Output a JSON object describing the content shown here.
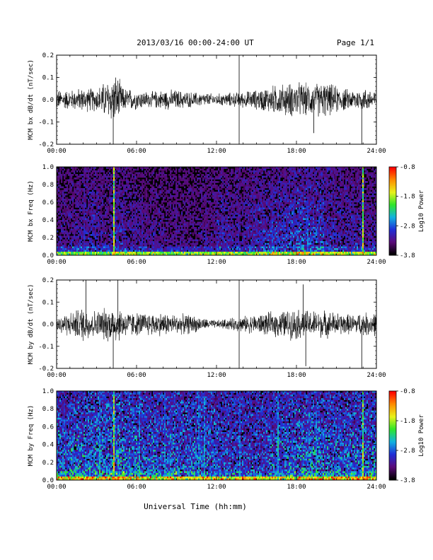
{
  "header": {
    "title": "2013/03/16  00:00-24:00 UT",
    "page": "Page 1/1"
  },
  "xaxis": {
    "ticks": [
      "00:00",
      "06:00",
      "12:00",
      "18:00",
      "24:00"
    ],
    "label": "Universal Time (hh:mm)"
  },
  "colorbar": {
    "ticks": [
      "-0.8",
      "-1.8",
      "-2.8",
      "-3.8"
    ],
    "label": "Log10 Power",
    "range": [
      -3.8,
      -0.8
    ],
    "colors": [
      "#000000",
      "#5b0a7a",
      "#1f2ed8",
      "#12b3e0",
      "#2fe62a",
      "#e8f21a",
      "#ff8c00",
      "#ff0000"
    ]
  },
  "chart_data": [
    {
      "type": "line",
      "panel": "bx-dbdt",
      "ylabel": "MCM bx dB/dt (nT/sec)",
      "ylim": [
        -0.2,
        0.2
      ],
      "yticks": [
        "0.2",
        "0.1",
        "0.0",
        "-0.1",
        "-0.2"
      ],
      "xlim_hours": [
        0,
        24
      ],
      "envelope": {
        "x": [
          0,
          1,
          2,
          3,
          4,
          4.5,
          5,
          6,
          7,
          8,
          9,
          10,
          11,
          12,
          13,
          14,
          15,
          16,
          17,
          18,
          19,
          20,
          21,
          22,
          23,
          24
        ],
        "amplitude": [
          0.05,
          0.05,
          0.06,
          0.06,
          0.11,
          0.13,
          0.06,
          0.05,
          0.04,
          0.05,
          0.05,
          0.04,
          0.035,
          0.03,
          0.035,
          0.04,
          0.05,
          0.07,
          0.08,
          0.09,
          0.08,
          0.09,
          0.07,
          0.05,
          0.06,
          0.05
        ]
      },
      "spikes": [
        {
          "x": 4.25,
          "y": -0.2
        },
        {
          "x": 13.7,
          "y": 0.2
        },
        {
          "x": 13.7,
          "y": -0.2
        },
        {
          "x": 22.9,
          "y": -0.2
        },
        {
          "x": 19.3,
          "y": -0.15
        }
      ]
    },
    {
      "type": "heatmap",
      "panel": "bx-freq",
      "ylabel": "MCM bx Freq (Hz)",
      "ylim": [
        0.0,
        1.0
      ],
      "yticks": [
        "1.0",
        "0.8",
        "0.6",
        "0.4",
        "0.2",
        "0.0"
      ],
      "xlim_hours": [
        0,
        24
      ],
      "background_level": 0.15,
      "activity_by_hour": [
        0.25,
        0.3,
        0.35,
        0.3,
        0.35,
        0.3,
        0.25,
        0.25,
        0.2,
        0.2,
        0.2,
        0.25,
        0.35,
        0.3,
        0.35,
        0.4,
        0.45,
        0.5,
        0.55,
        0.5,
        0.4,
        0.35,
        0.35,
        0.3
      ],
      "streaks": [
        {
          "x": 4.25,
          "level": 0.95
        },
        {
          "x": 22.9,
          "level": 0.9
        },
        {
          "x": 2.0,
          "level": 0.35
        },
        {
          "x": 6.4,
          "level": 0.3
        },
        {
          "x": 8.9,
          "level": 0.3
        },
        {
          "x": 11.1,
          "level": 0.3
        },
        {
          "x": 13.6,
          "level": 0.3
        },
        {
          "x": 16.1,
          "level": 0.35
        },
        {
          "x": 18.8,
          "level": 0.4
        }
      ]
    },
    {
      "type": "line",
      "panel": "by-dbdt",
      "ylabel": "MCM by dB/dt (nT/sec)",
      "ylim": [
        -0.2,
        0.2
      ],
      "yticks": [
        "0.2",
        "0.1",
        "0.0",
        "-0.1",
        "-0.2"
      ],
      "xlim_hours": [
        0,
        24
      ],
      "envelope": {
        "x": [
          0,
          1,
          2,
          3,
          4,
          4.5,
          5,
          6,
          7,
          8,
          9,
          10,
          11,
          12,
          13,
          14,
          15,
          16,
          17,
          18,
          19,
          20,
          21,
          22,
          23,
          24
        ],
        "amplitude": [
          0.05,
          0.06,
          0.09,
          0.07,
          0.09,
          0.1,
          0.07,
          0.06,
          0.06,
          0.06,
          0.05,
          0.05,
          0.03,
          0.02,
          0.03,
          0.04,
          0.05,
          0.06,
          0.07,
          0.08,
          0.07,
          0.07,
          0.06,
          0.05,
          0.06,
          0.06
        ]
      },
      "spikes": [
        {
          "x": 4.25,
          "y": -0.2
        },
        {
          "x": 2.2,
          "y": 0.2
        },
        {
          "x": 4.6,
          "y": 0.2
        },
        {
          "x": 13.7,
          "y": 0.2
        },
        {
          "x": 13.7,
          "y": -0.2
        },
        {
          "x": 18.5,
          "y": 0.18
        },
        {
          "x": 18.7,
          "y": -0.19
        },
        {
          "x": 22.9,
          "y": -0.2
        }
      ]
    },
    {
      "type": "heatmap",
      "panel": "by-freq",
      "ylabel": "MCM by Freq (Hz)",
      "ylim": [
        0.0,
        1.0
      ],
      "yticks": [
        "1.0",
        "0.8",
        "0.6",
        "0.4",
        "0.2",
        "0.0"
      ],
      "xlim_hours": [
        0,
        24
      ],
      "background_level": 0.3,
      "activity_by_hour": [
        0.45,
        0.5,
        0.5,
        0.5,
        0.55,
        0.5,
        0.45,
        0.45,
        0.45,
        0.4,
        0.45,
        0.4,
        0.35,
        0.3,
        0.3,
        0.35,
        0.4,
        0.45,
        0.5,
        0.5,
        0.45,
        0.45,
        0.45,
        0.45
      ],
      "streaks": [
        {
          "x": 4.25,
          "level": 0.95
        },
        {
          "x": 22.9,
          "level": 0.85
        },
        {
          "x": 3.2,
          "level": 0.55
        },
        {
          "x": 6.2,
          "level": 0.55
        },
        {
          "x": 8.1,
          "level": 0.5
        },
        {
          "x": 10.6,
          "level": 0.55
        },
        {
          "x": 11.0,
          "level": 0.6
        },
        {
          "x": 13.7,
          "level": 0.5
        },
        {
          "x": 16.6,
          "level": 0.6
        },
        {
          "x": 19.4,
          "level": 0.5
        }
      ]
    }
  ]
}
